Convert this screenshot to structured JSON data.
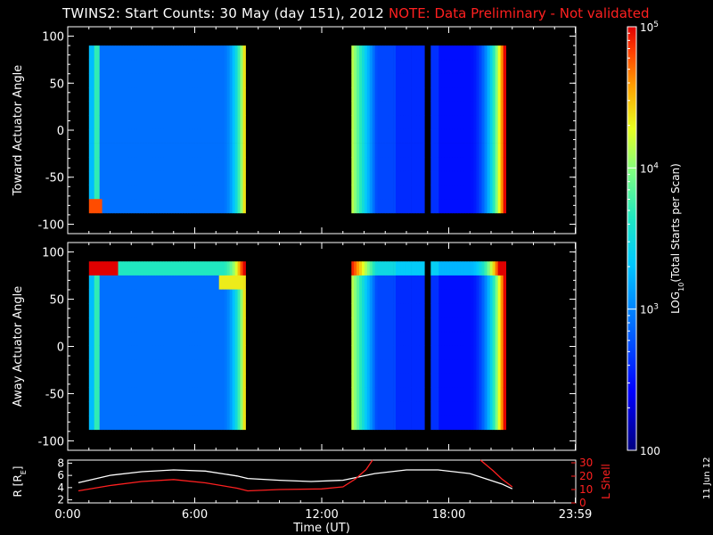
{
  "header": {
    "title": "TWINS2: Start Counts: 30 May (day 151), 2012",
    "note": "NOTE: Data Preliminary - Not validated",
    "note_color": "#ff2020",
    "date_stamp": "11 Jun 12"
  },
  "chart_data": [
    {
      "type": "heatmap",
      "panel": "toward",
      "ylabel": "Toward Actuator Angle",
      "ylim": [
        -110,
        110
      ],
      "yticks": [
        100,
        50,
        0,
        -50,
        -100
      ],
      "xlim": [
        0,
        24
      ],
      "data_time_blocks": [
        [
          1.0,
          8.4
        ],
        [
          13.4,
          16.85
        ],
        [
          17.15,
          20.7
        ]
      ],
      "angle_range": [
        -88,
        90
      ]
    },
    {
      "type": "heatmap",
      "panel": "away",
      "ylabel": "Away Actuator Angle",
      "ylim": [
        -110,
        110
      ],
      "yticks": [
        100,
        50,
        0,
        -50,
        -100
      ],
      "xlim": [
        0,
        24
      ],
      "data_time_blocks": [
        [
          1.0,
          8.4
        ],
        [
          13.4,
          16.85
        ],
        [
          17.15,
          20.7
        ]
      ],
      "angle_range": [
        -88,
        90
      ]
    },
    {
      "type": "line",
      "panel": "ephemeris",
      "ylabel_left": "R [R",
      "ylabel_left_sub": "E",
      "ylabel_left_end": "]",
      "ylabel_right": "L Shell",
      "yticks_left": [
        8,
        6,
        4,
        2
      ],
      "yticks_right": [
        30,
        20,
        10,
        0
      ],
      "ylim_left": [
        1.5,
        8.5
      ],
      "ylim_right": [
        0,
        32
      ],
      "xlabel": "Time (UT)",
      "xticks": [
        "0:00",
        "6:00",
        "12:00",
        "18:00",
        "23:59"
      ],
      "xtick_values": [
        0,
        6,
        12,
        18,
        23.98
      ],
      "xlim": [
        0,
        24
      ],
      "series": [
        {
          "color": "#ffffff",
          "axis": "left",
          "x": [
            0.5,
            2,
            3.5,
            5,
            6.5,
            8,
            8.5,
            10,
            11.5,
            13,
            14.5,
            16,
            17.5,
            19,
            20.5,
            21
          ],
          "y": [
            4.8,
            6.0,
            6.6,
            6.9,
            6.7,
            5.9,
            5.5,
            5.2,
            5.0,
            5.2,
            6.3,
            6.9,
            6.9,
            6.3,
            4.6,
            3.8
          ]
        },
        {
          "color": "#ff2020",
          "axis": "right",
          "x": [
            0.5,
            2,
            3.5,
            5,
            6.5,
            8,
            8.5,
            10,
            12,
            13,
            13.6,
            14.1,
            14.4
          ],
          "y": [
            9,
            13,
            16,
            17.5,
            15,
            11,
            9,
            10,
            10.5,
            12,
            18,
            25,
            32
          ]
        },
        {
          "color": "#ff2020",
          "axis": "right",
          "x": [
            19.5,
            20.1,
            20.5,
            21
          ],
          "y": [
            32,
            24,
            18,
            12
          ]
        }
      ]
    },
    {
      "type": "heatmap",
      "panel": "colorbar",
      "label": "LOG",
      "label_sub": "10",
      "label_end": "(Total Starts per Scan)",
      "scale": "log",
      "range": [
        100,
        100000
      ],
      "ticks": [
        {
          "value": 100000,
          "base": "10",
          "exp": "5"
        },
        {
          "value": 10000,
          "base": "10",
          "exp": "4"
        },
        {
          "value": 1000,
          "base": "10",
          "exp": "3"
        },
        {
          "value": 100,
          "base": "100",
          "exp": ""
        }
      ]
    }
  ]
}
